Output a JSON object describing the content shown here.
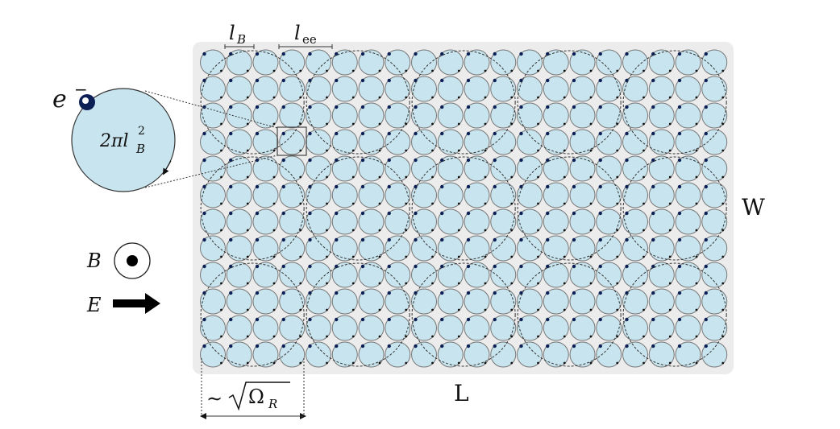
{
  "labels": {
    "magnetic_length": "l",
    "magnetic_length_sub": "B",
    "ee_length": "l",
    "ee_length_sub": "ee",
    "width": "W",
    "length": "L",
    "electron": "e",
    "electron_sup": "−",
    "orbit_area": "2πl",
    "orbit_area_sup": "2",
    "orbit_area_sub": "B",
    "b_field": "B",
    "e_field": "E",
    "scale_prefix": "∼",
    "scale_symbol": "Ω",
    "scale_sub": "R"
  },
  "grid": {
    "columns": 20,
    "rows": 12,
    "cluster_columns": 5,
    "cluster_rows": 3
  },
  "colors": {
    "orbit_fill": "#c8e5ef",
    "electron": "#0b1f55",
    "sample_background": "#ececec"
  }
}
